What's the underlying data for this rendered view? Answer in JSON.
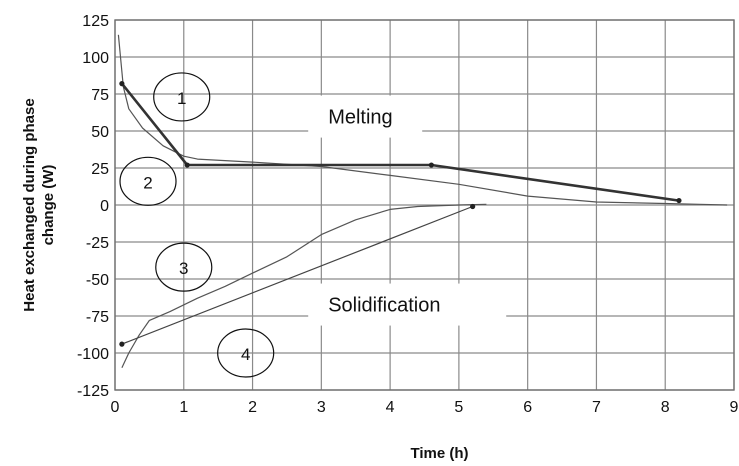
{
  "chart_data": {
    "type": "line",
    "title": "",
    "xlabel": "Time (h)",
    "ylabel": "Heat exchanged during phase change (W)",
    "xlim": [
      0,
      9
    ],
    "ylim": [
      -125,
      125
    ],
    "x_ticks": [
      "0",
      "1",
      "2",
      "3",
      "4",
      "5",
      "6",
      "7",
      "8",
      "9"
    ],
    "y_ticks": [
      "125",
      "100",
      "75",
      "50",
      "25",
      "0",
      "-25",
      "-50",
      "-75",
      "-100",
      "-125"
    ],
    "grid": true,
    "legend": "none",
    "series": [
      {
        "style": "thin",
        "color": "#555555",
        "points": [
          [
            0.05,
            115
          ],
          [
            0.08,
            100
          ],
          [
            0.12,
            80
          ],
          [
            0.2,
            65
          ],
          [
            0.4,
            52
          ],
          [
            0.7,
            40
          ],
          [
            1.0,
            33
          ],
          [
            1.2,
            31
          ],
          [
            2.0,
            29
          ],
          [
            3.0,
            26
          ],
          [
            4.0,
            20
          ],
          [
            5.0,
            14
          ],
          [
            6.0,
            6
          ],
          [
            7.0,
            2
          ],
          [
            8.0,
            1
          ],
          [
            8.5,
            0.5
          ],
          [
            8.9,
            0
          ]
        ]
      },
      {
        "style": "bold-markers",
        "color": "#333333",
        "points": [
          [
            0.1,
            82
          ],
          [
            1.05,
            27
          ],
          [
            4.6,
            27
          ],
          [
            8.2,
            3
          ]
        ]
      },
      {
        "style": "thin",
        "color": "#555555",
        "points": [
          [
            0.1,
            -110
          ],
          [
            0.2,
            -100
          ],
          [
            0.35,
            -88
          ],
          [
            0.5,
            -78
          ],
          [
            0.8,
            -72
          ],
          [
            1.2,
            -63
          ],
          [
            1.6,
            -55
          ],
          [
            2.0,
            -46
          ],
          [
            2.5,
            -35
          ],
          [
            3.0,
            -20
          ],
          [
            3.5,
            -10
          ],
          [
            4.0,
            -3
          ],
          [
            4.4,
            -1
          ],
          [
            5.0,
            0
          ],
          [
            5.4,
            0.5
          ]
        ]
      },
      {
        "style": "thin-markers",
        "color": "#444444",
        "points": [
          [
            0.1,
            -94
          ],
          [
            5.2,
            -1
          ]
        ]
      }
    ],
    "annotations": [
      {
        "text": "Melting",
        "x": 3.1,
        "y": 55
      },
      {
        "text": "Solidification",
        "x": 3.1,
        "y": -72
      }
    ],
    "curve_labels": [
      {
        "text": "1",
        "x": 0.97,
        "y": 73
      },
      {
        "text": "2",
        "x": 0.48,
        "y": 16
      },
      {
        "text": "3",
        "x": 1.0,
        "y": -42
      },
      {
        "text": "4",
        "x": 1.9,
        "y": -100
      }
    ]
  }
}
